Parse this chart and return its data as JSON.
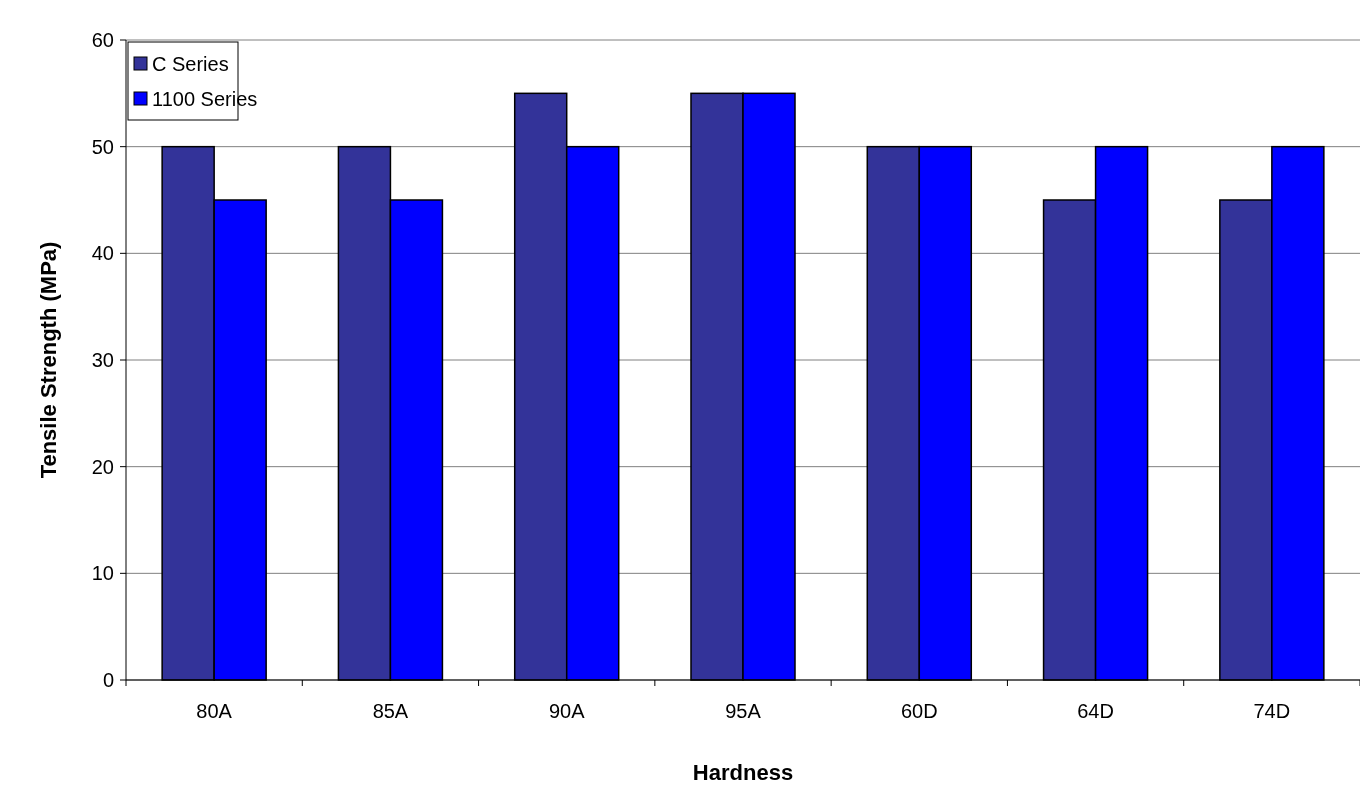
{
  "chart_data": {
    "type": "bar",
    "xlabel": "Hardness",
    "ylabel": "Tensile Strength (MPa)",
    "categories": [
      "80A",
      "85A",
      "90A",
      "95A",
      "60D",
      "64D",
      "74D"
    ],
    "series": [
      {
        "name": "C Series",
        "color": "#333399",
        "values": [
          50,
          50,
          55,
          55,
          50,
          45,
          45
        ]
      },
      {
        "name": "1100 Series",
        "color": "#0000ff",
        "values": [
          45,
          45,
          50,
          55,
          50,
          50,
          50
        ]
      }
    ],
    "ylim": [
      0,
      60
    ],
    "yticks": [
      0,
      10,
      20,
      30,
      40,
      50,
      60
    ],
    "grid": "y",
    "legend": "top left"
  }
}
